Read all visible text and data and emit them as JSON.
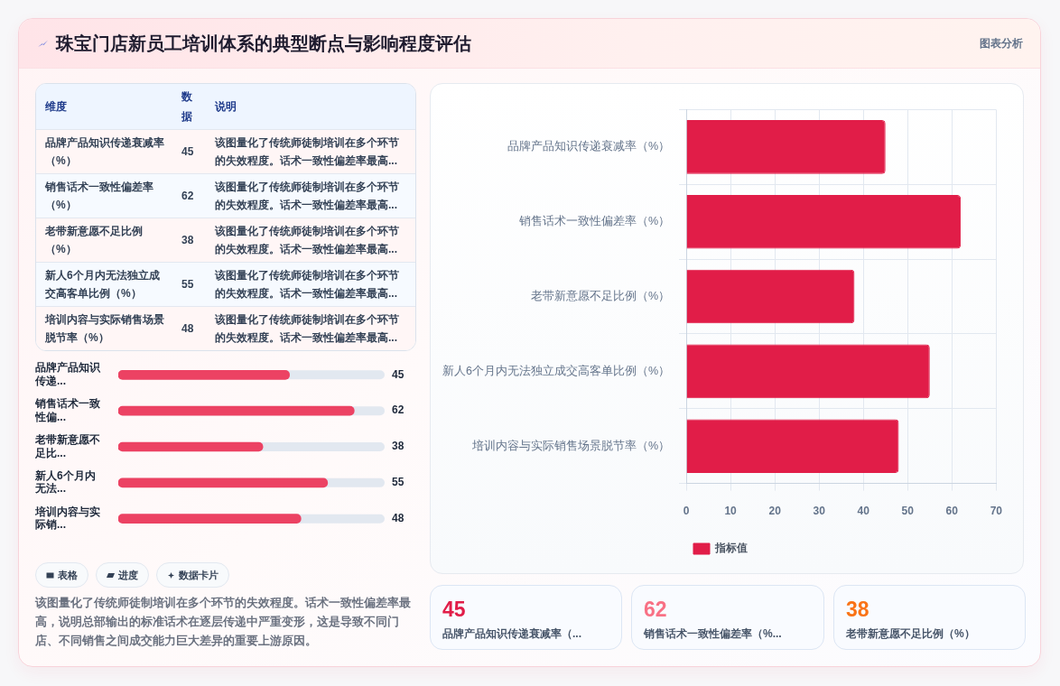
{
  "chart_data": [
    {
      "type": "other",
      "title": "珠宝门店新员工培训体系的典型断点与影响程度评估",
      "categories": [
        "品牌产品知识传递衰减率（%）",
        "销售话术一致性偏差率（%）",
        "老带新意愿不足比例（%）",
        "新人6个月内无法独立成交高客单比例（%）",
        "培训内容与实际销售场景脱节率（%）"
      ],
      "values": [
        45,
        62,
        38,
        55,
        48
      ],
      "data_labels": true,
      "annotations": [
        "图表分析",
        "维度",
        "数据",
        "说明",
        "该图量化了传统师徒制培训在多个环节的失效程度。话术一致性偏差率最高..."
      ]
    },
    {
      "type": "bar",
      "orientation": "horizontal",
      "categories": [
        "品牌产品知识传递...",
        "销售话术一致性偏...",
        "老带新意愿不足比...",
        "新人6个月内无法...",
        "培训内容与实际销..."
      ],
      "series": [
        {
          "color": "#ec4263",
          "values": [
            45,
            62,
            38,
            55,
            48
          ]
        }
      ],
      "data_labels": true,
      "tick_labels": "y",
      "annotations": [
        "表格",
        "进度",
        "数据卡片",
        "该图量化了传统师徒制培训在多个环节的失效程度。话术一致性偏差率最高，说明总部输出的标准话术在逐层传递中严重变形，这是导致不同门店、不同销售之间成交能力巨大差异的重要上游原因。"
      ]
    },
    {
      "type": "bar",
      "orientation": "horizontal",
      "categories": [
        "品牌产品知识传递衰减率（%）",
        "销售话术一致性偏差率（%）",
        "老带新意愿不足比例（%）",
        "新人6个月内无法独立成交高客单比例（%）",
        "培训内容与实际销售场景脱节率（%）"
      ],
      "series": [
        {
          "name": "指标值",
          "color": "#e11d48",
          "values": [
            45,
            62,
            38,
            55,
            48
          ]
        }
      ],
      "xlim": [
        0,
        70
      ],
      "xticks": [
        0,
        10,
        20,
        30,
        40,
        50,
        60,
        70
      ],
      "grid": true,
      "legend": "bottom"
    },
    {
      "type": "other",
      "categories": [
        "品牌产品知识传递衰减率（...",
        "销售话术一致性偏差率（%...",
        "老带新意愿不足比例（%）"
      ],
      "values": [
        45,
        62,
        38
      ],
      "data_labels": true
    }
  ]
}
